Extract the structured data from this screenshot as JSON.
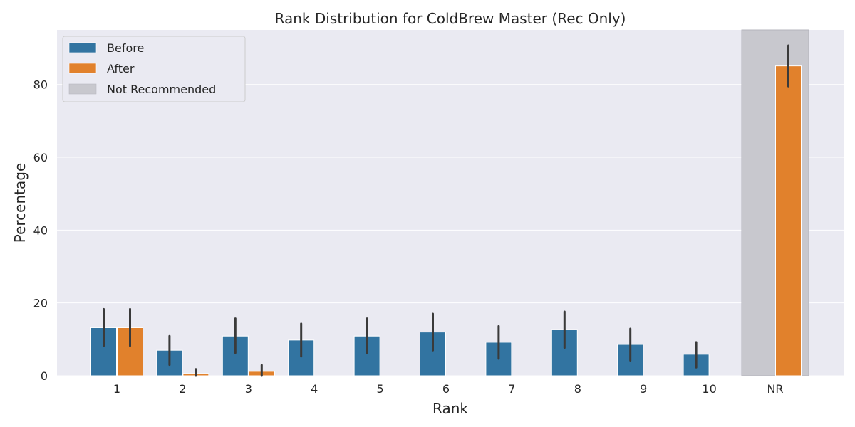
{
  "chart_data": {
    "type": "bar",
    "title": "Rank Distribution for ColdBrew Master (Rec Only)",
    "xlabel": "Rank",
    "ylabel": "Percentage",
    "categories": [
      "1",
      "2",
      "3",
      "4",
      "5",
      "6",
      "7",
      "8",
      "9",
      "10",
      "NR"
    ],
    "ylim": [
      0,
      95
    ],
    "yticks": [
      0,
      20,
      40,
      60,
      80
    ],
    "grid": true,
    "legend_position": "top-left",
    "highlight": {
      "category": "NR",
      "label": "Not Recommended",
      "color": "#c8c8ce"
    },
    "series": [
      {
        "name": "Before",
        "color": "#3274a1",
        "values": [
          13.2,
          7.0,
          10.9,
          9.8,
          10.9,
          12.0,
          9.2,
          12.7,
          8.6,
          5.9,
          null
        ],
        "error_low": [
          8.2,
          3.0,
          6.3,
          5.3,
          6.3,
          7.0,
          4.7,
          7.7,
          4.2,
          2.3,
          null
        ],
        "error_high": [
          18.3,
          10.9,
          15.7,
          14.3,
          15.7,
          17.0,
          13.6,
          17.6,
          12.9,
          9.2,
          null
        ]
      },
      {
        "name": "After",
        "color": "#e1812c",
        "values": [
          13.2,
          0.6,
          1.2,
          0,
          0,
          0,
          0,
          0,
          0,
          0,
          85.1
        ],
        "error_low": [
          8.2,
          0,
          0,
          0,
          0,
          0,
          0,
          0,
          0,
          0,
          79.5
        ],
        "error_high": [
          18.3,
          1.8,
          2.9,
          0,
          0,
          0,
          0,
          0,
          0,
          0,
          90.7
        ]
      }
    ],
    "error_bar_color": "#3a3a3a"
  }
}
